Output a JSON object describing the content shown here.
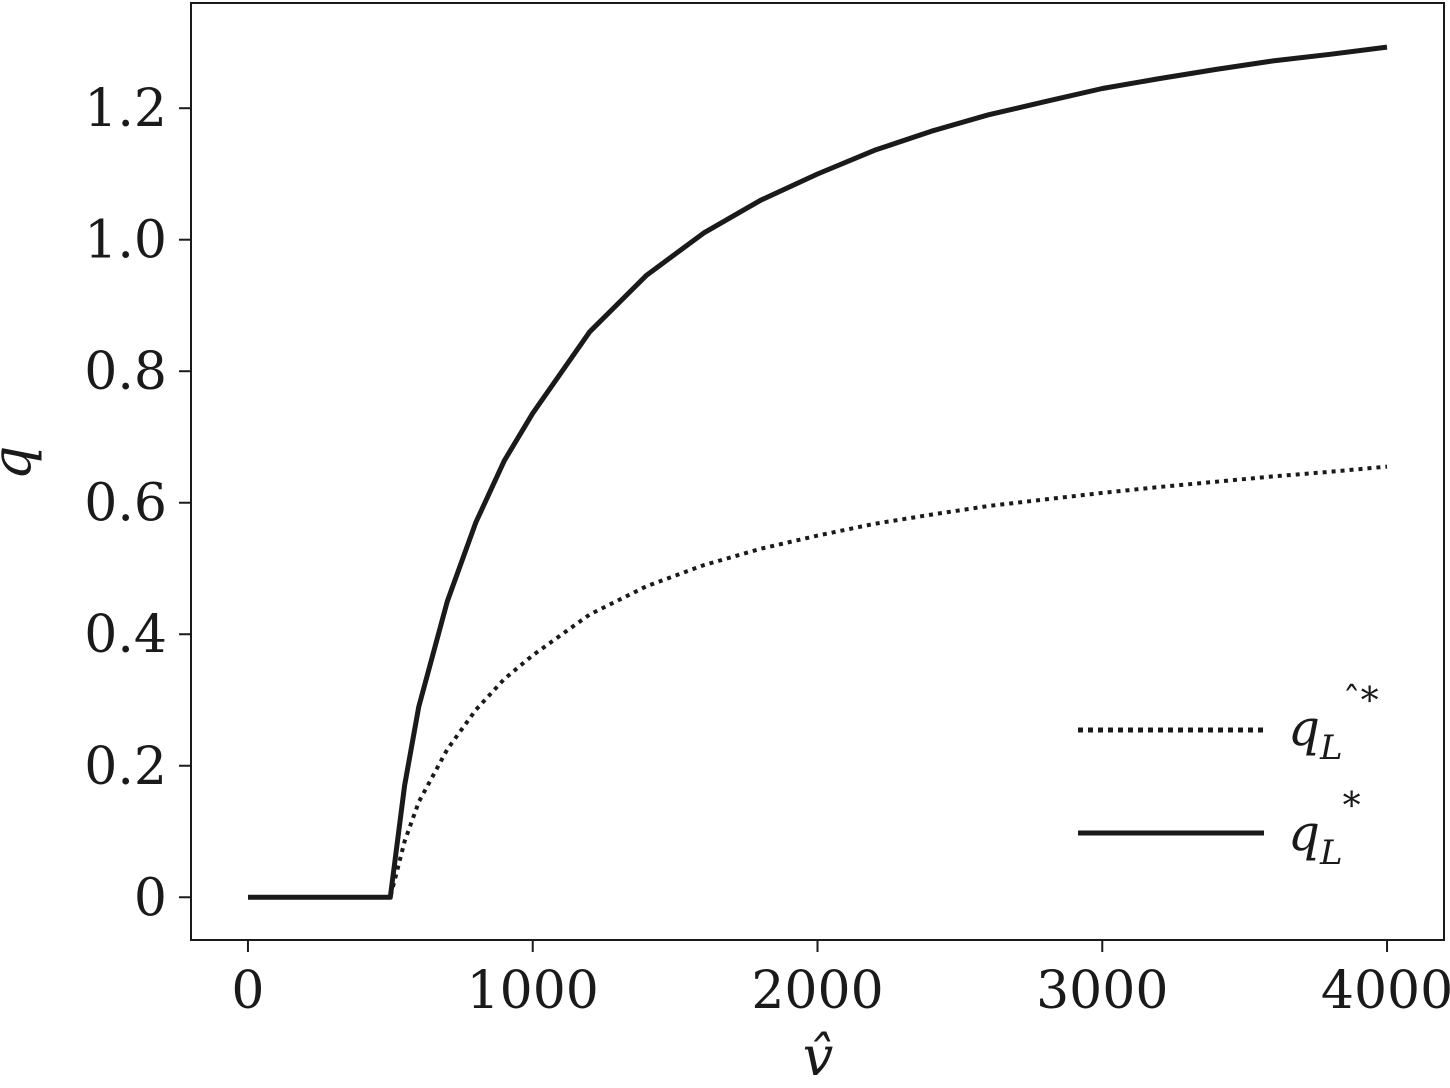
{
  "chart_data": {
    "type": "line",
    "title": "",
    "xlabel": "v̂",
    "ylabel": "q",
    "xlim": [
      -200,
      4200
    ],
    "ylim": [
      -0.065,
      1.36
    ],
    "xticks": [
      0,
      1000,
      2000,
      3000,
      4000
    ],
    "xtick_labels": [
      "0",
      "1000",
      "2000",
      "3000",
      "4000"
    ],
    "yticks": [
      0,
      0.2,
      0.4,
      0.6,
      0.8,
      1.0,
      1.2
    ],
    "ytick_labels": [
      "0",
      "0.2",
      "0.4",
      "0.6",
      "0.8",
      "1.0",
      "1.2"
    ],
    "grid": false,
    "legend_position": "bottom-right",
    "series": [
      {
        "name": "q_L^*",
        "legend": {
          "base": "q",
          "sub": "L",
          "sup": "*"
        },
        "style": "solid",
        "color": "#1a1a1a",
        "x": [
          0,
          500,
          550,
          600,
          700,
          800,
          900,
          1000,
          1200,
          1400,
          1600,
          1800,
          2000,
          2200,
          2400,
          2600,
          2800,
          3000,
          3200,
          3400,
          3600,
          3800,
          4000
        ],
        "y": [
          0,
          0,
          0.17,
          0.29,
          0.45,
          0.57,
          0.664,
          0.736,
          0.86,
          0.946,
          1.01,
          1.06,
          1.1,
          1.136,
          1.165,
          1.19,
          1.21,
          1.23,
          1.245,
          1.259,
          1.272,
          1.282,
          1.293
        ]
      },
      {
        "name": "q̂_L^*",
        "legend": {
          "base": "q",
          "sub": "L",
          "sup": "ˆ*"
        },
        "style": "dotted",
        "color": "#1a1a1a",
        "x": [
          0,
          500,
          550,
          600,
          700,
          800,
          900,
          1000,
          1200,
          1400,
          1600,
          1800,
          2000,
          2200,
          2400,
          2600,
          2800,
          3000,
          3200,
          3400,
          3600,
          3800,
          4000
        ],
        "y": [
          0,
          0,
          0.085,
          0.145,
          0.225,
          0.285,
          0.332,
          0.368,
          0.43,
          0.473,
          0.505,
          0.53,
          0.55,
          0.568,
          0.582,
          0.595,
          0.605,
          0.615,
          0.624,
          0.632,
          0.64,
          0.647,
          0.655
        ]
      }
    ]
  }
}
